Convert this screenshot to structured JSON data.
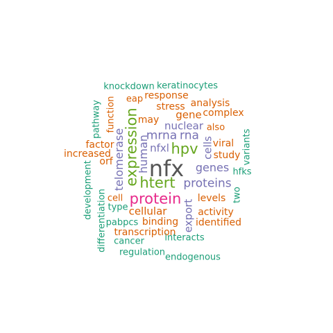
{
  "words": {
    "nfx": "nfx",
    "protein": "protein",
    "htert": "htert",
    "expression": "expression",
    "hpv": "hpv",
    "proteins": "proteins",
    "mrna": "mrna",
    "rna": "rna",
    "genes": "genes",
    "telomerase": "telomerase",
    "human": "human",
    "nfxl": "nfxl",
    "cells": "cells",
    "export": "export",
    "cellular": "cellular",
    "nuclear": "nuclear",
    "gene": "gene",
    "stress": "stress",
    "levels": "levels",
    "viral": "viral",
    "study": "study",
    "binding": "binding",
    "activity": "activity",
    "identified": "identified",
    "transcription": "transcription",
    "interacts": "interacts",
    "cancer": "cancer",
    "regulation": "regulation",
    "endogenous": "endogenous",
    "knockdown": "knockdown",
    "keratinocytes": "keratinocytes",
    "response": "response",
    "eap": "eap",
    "analysis": "analysis",
    "complex": "complex",
    "may": "may",
    "also": "also",
    "function": "function",
    "pathway": "pathway",
    "factor": "factor",
    "increased": "increased",
    "orf": "orf",
    "variants": "variants",
    "hfks": "hfks",
    "two": "two",
    "development": "development",
    "cell": "cell",
    "type": "type",
    "differentiation": "differentiation",
    "pabpcs": "pabpcs"
  },
  "colors": {
    "green": "#1b9e77",
    "orange": "#d95f02",
    "purple": "#7570b3",
    "magenta": "#e7298a",
    "lime": "#66a61e",
    "gray": "#555555"
  }
}
